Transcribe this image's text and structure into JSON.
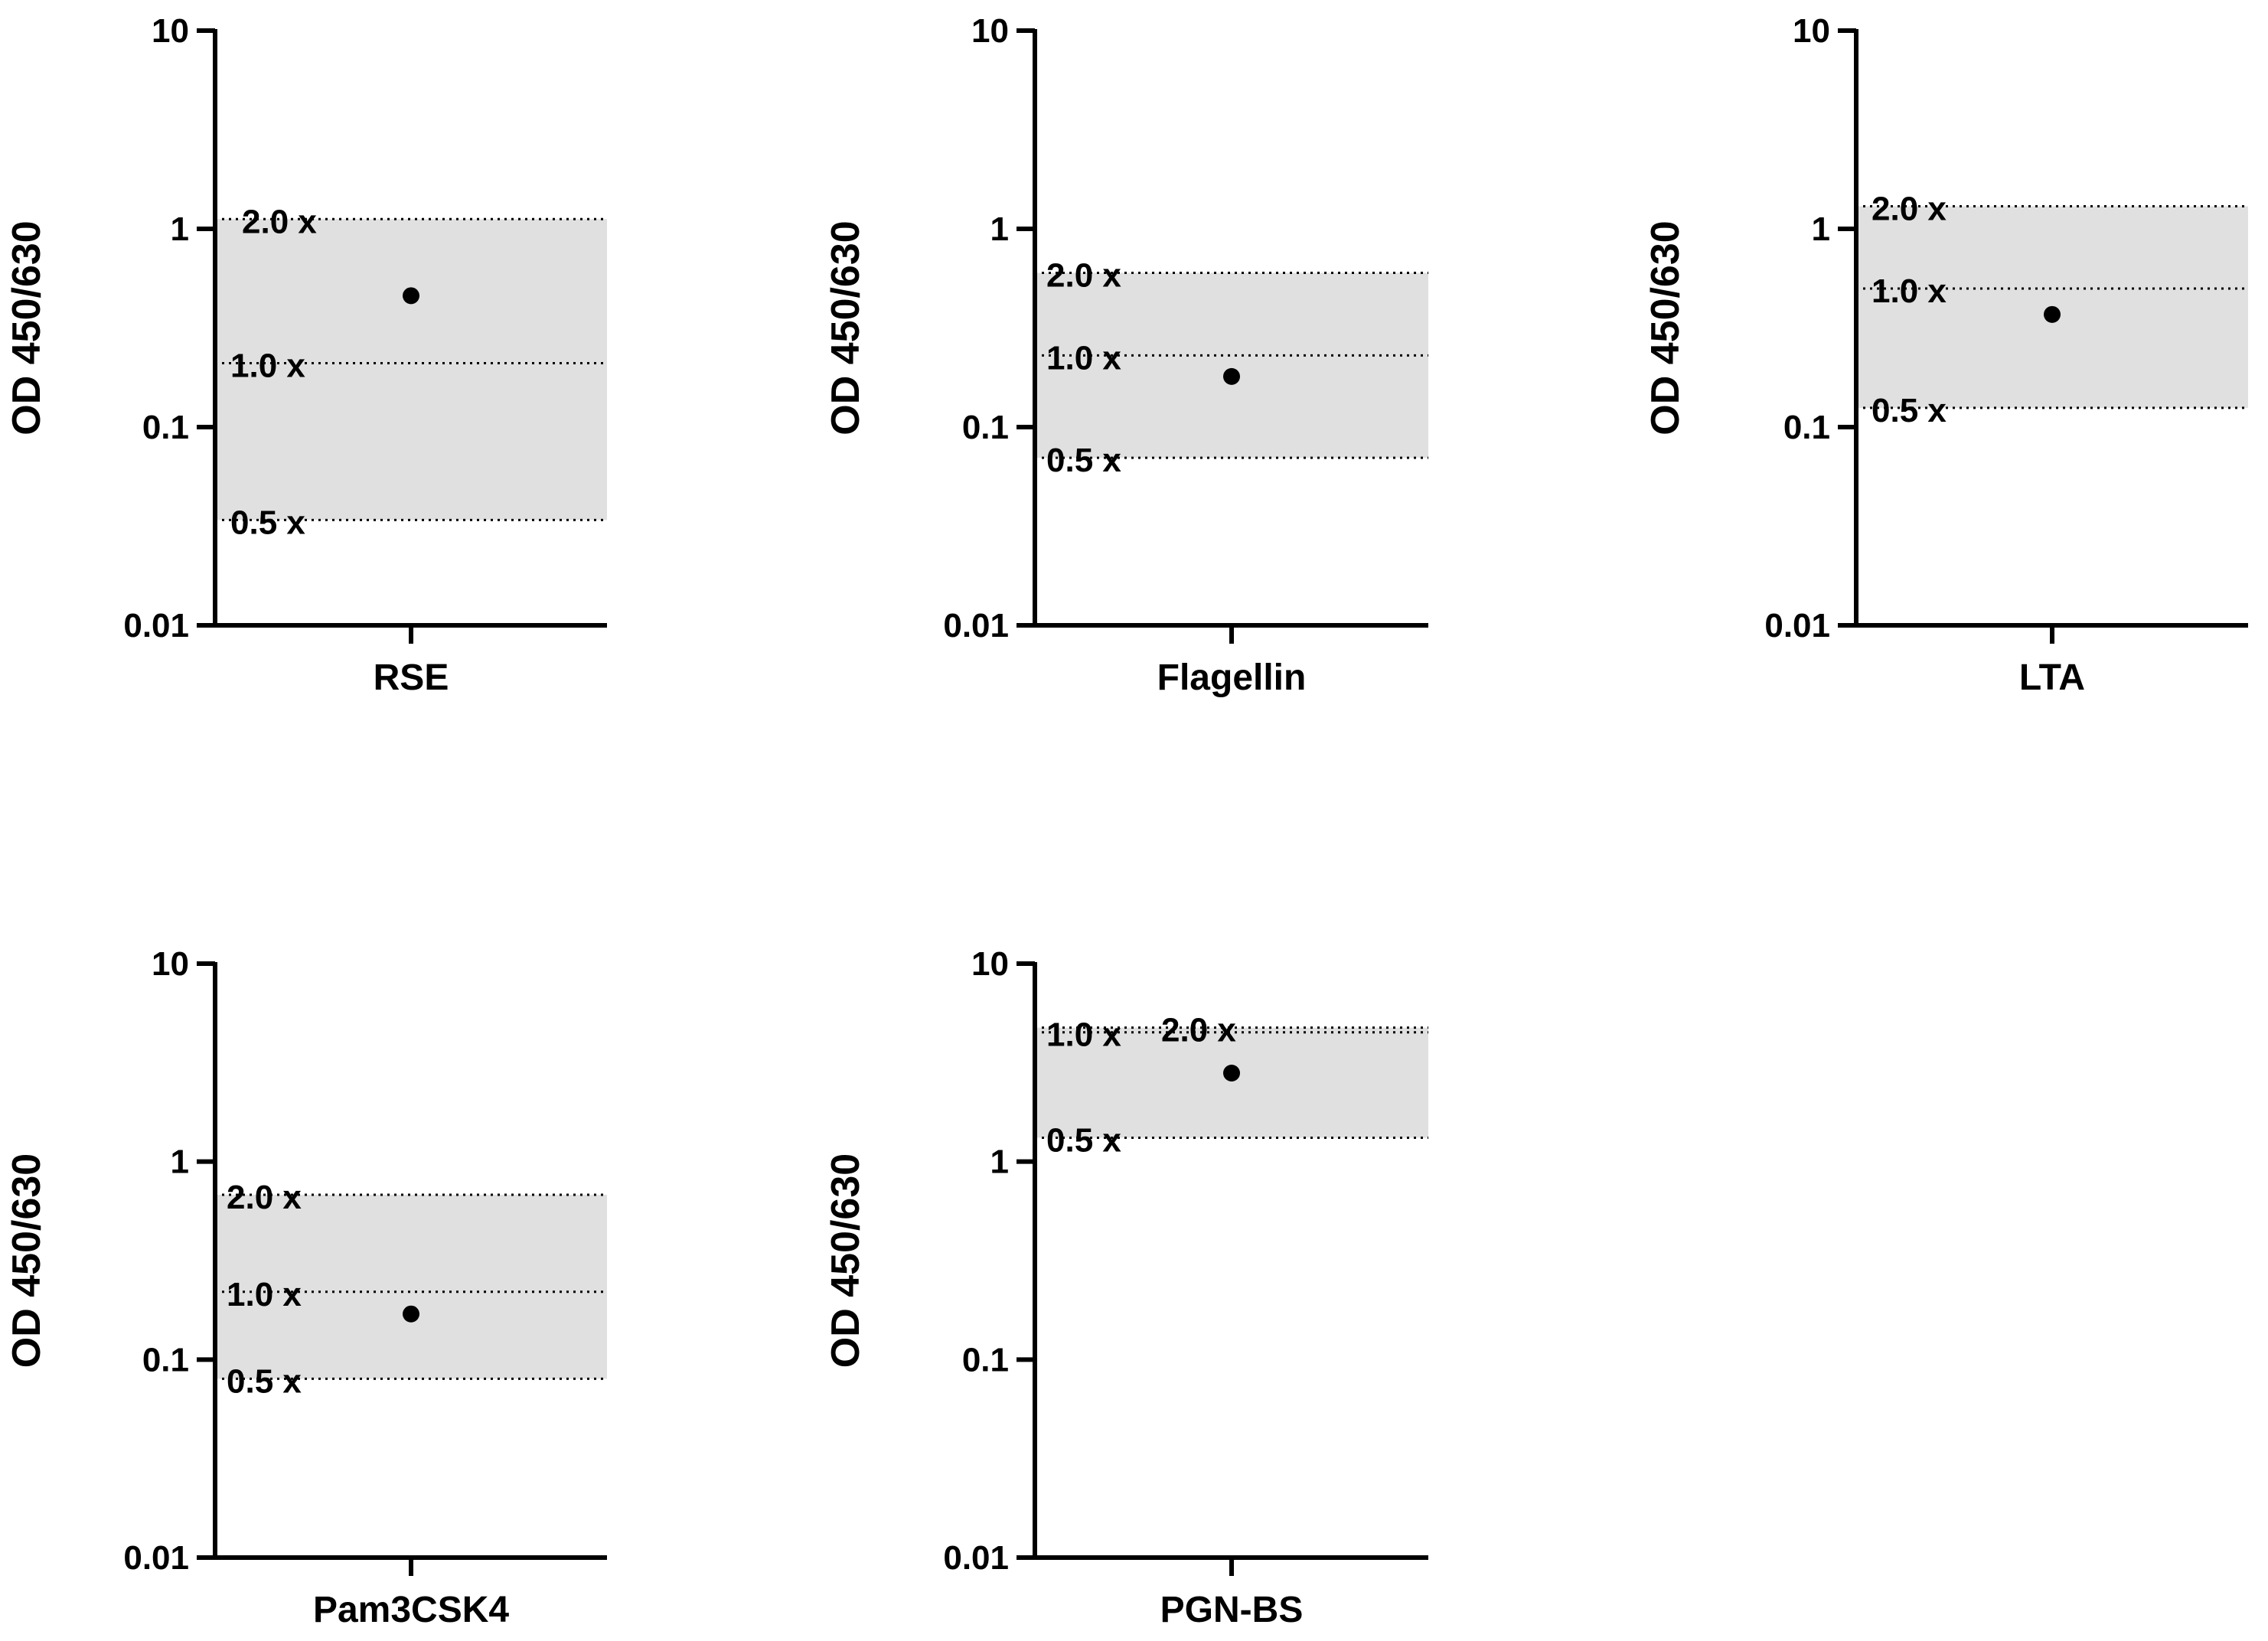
{
  "colors": {
    "axis": "#000000",
    "band": "#e0e0e0",
    "point": "#000000",
    "ref_line": "#000000"
  },
  "chart_data": [
    {
      "type": "scatter",
      "category": "RSE",
      "ylabel": "OD 450/630",
      "yscale": "log",
      "ylim": [
        0.01,
        10
      ],
      "yticks": [
        "0.01",
        "0.1",
        "1",
        "10"
      ],
      "value": 0.46,
      "band": [
        0.034,
        1.12
      ],
      "ref_lines": [
        {
          "label": "2.0 x",
          "value": 1.12
        },
        {
          "label": "1.0 x",
          "value": 0.21
        },
        {
          "label": "0.5 x",
          "value": 0.034
        }
      ]
    },
    {
      "type": "scatter",
      "category": "Flagellin",
      "ylabel": "OD 450/630",
      "yscale": "log",
      "ylim": [
        0.01,
        10
      ],
      "yticks": [
        "0.01",
        "0.1",
        "1",
        "10"
      ],
      "value": 0.18,
      "band": [
        0.07,
        0.6
      ],
      "ref_lines": [
        {
          "label": "2.0 x",
          "value": 0.6
        },
        {
          "label": "1.0 x",
          "value": 0.23
        },
        {
          "label": "0.5 x",
          "value": 0.07
        }
      ]
    },
    {
      "type": "scatter",
      "category": "LTA",
      "ylabel": "OD 450/630",
      "yscale": "log",
      "ylim": [
        0.01,
        10
      ],
      "yticks": [
        "0.01",
        "0.1",
        "1",
        "10"
      ],
      "value": 0.37,
      "band": [
        0.125,
        1.3
      ],
      "ref_lines": [
        {
          "label": "2.0 x",
          "value": 1.3
        },
        {
          "label": "1.0 x",
          "value": 0.5
        },
        {
          "label": "0.5 x",
          "value": 0.125
        }
      ]
    },
    {
      "type": "scatter",
      "category": "Pam3CSK4",
      "ylabel": "OD 450/630",
      "yscale": "log",
      "ylim": [
        0.01,
        10
      ],
      "yticks": [
        "0.01",
        "0.1",
        "1",
        "10"
      ],
      "value": 0.17,
      "band": [
        0.08,
        0.68
      ],
      "ref_lines": [
        {
          "label": "2.0 x",
          "value": 0.68
        },
        {
          "label": "1.0 x",
          "value": 0.22
        },
        {
          "label": "0.5 x",
          "value": 0.08
        }
      ]
    },
    {
      "type": "scatter",
      "category": "PGN-BS",
      "ylabel": "OD 450/630",
      "yscale": "log",
      "ylim": [
        0.01,
        10
      ],
      "yticks": [
        "0.01",
        "0.1",
        "1",
        "10"
      ],
      "value": 2.8,
      "band": [
        1.32,
        4.75
      ],
      "ref_lines": [
        {
          "label": "1.0 x",
          "value": 4.5
        },
        {
          "label": "2.0 x",
          "value": 4.75
        },
        {
          "label": "0.5 x",
          "value": 1.32
        }
      ]
    }
  ]
}
